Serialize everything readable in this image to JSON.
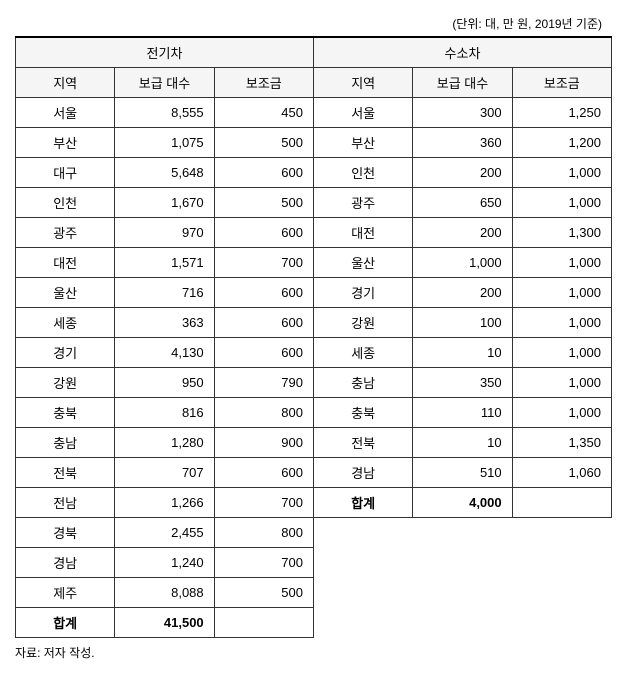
{
  "unit_note": "(단위: 대, 만 원, 2019년 기준)",
  "headers": {
    "ev_group": "전기차",
    "hv_group": "수소차",
    "region": "지역",
    "supply": "보급 대수",
    "subsidy": "보조금"
  },
  "ev_rows": [
    {
      "region": "서울",
      "supply": "8,555",
      "subsidy": "450"
    },
    {
      "region": "부산",
      "supply": "1,075",
      "subsidy": "500"
    },
    {
      "region": "대구",
      "supply": "5,648",
      "subsidy": "600"
    },
    {
      "region": "인천",
      "supply": "1,670",
      "subsidy": "500"
    },
    {
      "region": "광주",
      "supply": "970",
      "subsidy": "600"
    },
    {
      "region": "대전",
      "supply": "1,571",
      "subsidy": "700"
    },
    {
      "region": "울산",
      "supply": "716",
      "subsidy": "600"
    },
    {
      "region": "세종",
      "supply": "363",
      "subsidy": "600"
    },
    {
      "region": "경기",
      "supply": "4,130",
      "subsidy": "600"
    },
    {
      "region": "강원",
      "supply": "950",
      "subsidy": "790"
    },
    {
      "region": "충북",
      "supply": "816",
      "subsidy": "800"
    },
    {
      "region": "충남",
      "supply": "1,280",
      "subsidy": "900"
    },
    {
      "region": "전북",
      "supply": "707",
      "subsidy": "600"
    },
    {
      "region": "전남",
      "supply": "1,266",
      "subsidy": "700"
    },
    {
      "region": "경북",
      "supply": "2,455",
      "subsidy": "800"
    },
    {
      "region": "경남",
      "supply": "1,240",
      "subsidy": "700"
    },
    {
      "region": "제주",
      "supply": "8,088",
      "subsidy": "500"
    }
  ],
  "ev_total": {
    "region": "합계",
    "supply": "41,500",
    "subsidy": ""
  },
  "hv_rows": [
    {
      "region": "서울",
      "supply": "300",
      "subsidy": "1,250"
    },
    {
      "region": "부산",
      "supply": "360",
      "subsidy": "1,200"
    },
    {
      "region": "인천",
      "supply": "200",
      "subsidy": "1,000"
    },
    {
      "region": "광주",
      "supply": "650",
      "subsidy": "1,000"
    },
    {
      "region": "대전",
      "supply": "200",
      "subsidy": "1,300"
    },
    {
      "region": "울산",
      "supply": "1,000",
      "subsidy": "1,000"
    },
    {
      "region": "경기",
      "supply": "200",
      "subsidy": "1,000"
    },
    {
      "region": "강원",
      "supply": "100",
      "subsidy": "1,000"
    },
    {
      "region": "세종",
      "supply": "10",
      "subsidy": "1,000"
    },
    {
      "region": "충남",
      "supply": "350",
      "subsidy": "1,000"
    },
    {
      "region": "충북",
      "supply": "110",
      "subsidy": "1,000"
    },
    {
      "region": "전북",
      "supply": "10",
      "subsidy": "1,350"
    },
    {
      "region": "경남",
      "supply": "510",
      "subsidy": "1,060"
    }
  ],
  "hv_total": {
    "region": "합계",
    "supply": "4,000",
    "subsidy": ""
  },
  "source": "자료: 저자 작성."
}
